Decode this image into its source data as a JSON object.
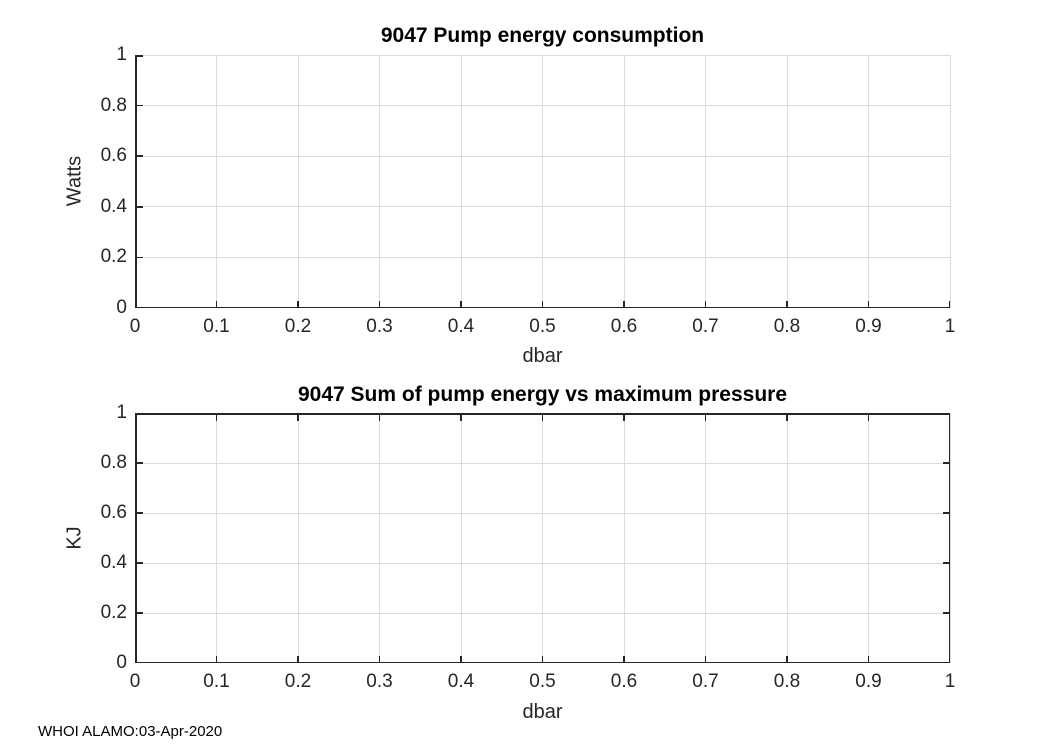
{
  "figure": {
    "watermark": "WHOI ALAMO:03-Apr-2020",
    "background": "#ffffff"
  },
  "colors": {
    "axis": "#262626",
    "grid": "#dbdbdb",
    "title": "#000000"
  },
  "chart_data": [
    {
      "type": "line",
      "title": "9047 Pump energy consumption",
      "xlabel": "dbar",
      "ylabel": "Watts",
      "xlim": [
        0,
        1
      ],
      "ylim": [
        0,
        1
      ],
      "xticks": [
        0,
        0.1,
        0.2,
        0.3,
        0.4,
        0.5,
        0.6,
        0.7,
        0.8,
        0.9,
        1
      ],
      "xtick_labels": [
        "0",
        "0.1",
        "0.2",
        "0.3",
        "0.4",
        "0.5",
        "0.6",
        "0.7",
        "0.8",
        "0.9",
        "1"
      ],
      "yticks": [
        0,
        0.2,
        0.4,
        0.6,
        0.8,
        1
      ],
      "ytick_labels": [
        "0",
        "0.2",
        "0.4",
        "0.6",
        "0.8",
        "1"
      ],
      "grid": true,
      "box": false,
      "legend": null,
      "series": []
    },
    {
      "type": "line",
      "title": "9047 Sum of pump energy vs maximum pressure",
      "xlabel": "dbar",
      "ylabel": "KJ",
      "xlim": [
        0,
        1
      ],
      "ylim": [
        0,
        1
      ],
      "xticks": [
        0,
        0.1,
        0.2,
        0.3,
        0.4,
        0.5,
        0.6,
        0.7,
        0.8,
        0.9,
        1
      ],
      "xtick_labels": [
        "0",
        "0.1",
        "0.2",
        "0.3",
        "0.4",
        "0.5",
        "0.6",
        "0.7",
        "0.8",
        "0.9",
        "1"
      ],
      "yticks": [
        0,
        0.2,
        0.4,
        0.6,
        0.8,
        1
      ],
      "ytick_labels": [
        "0",
        "0.2",
        "0.4",
        "0.6",
        "0.8",
        "1"
      ],
      "grid": true,
      "box": true,
      "legend": null,
      "series": []
    }
  ]
}
